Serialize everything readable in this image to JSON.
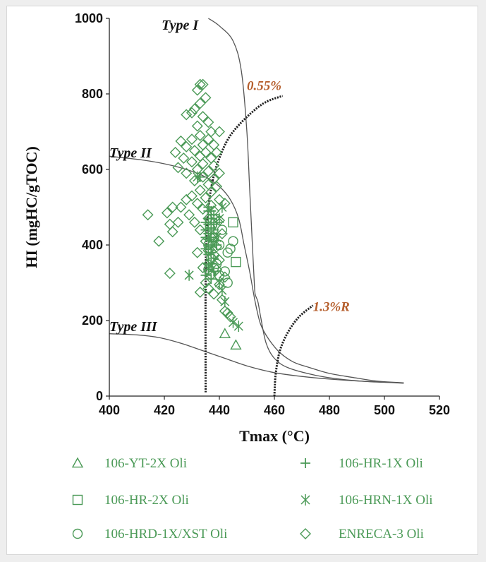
{
  "chart_data": {
    "type": "scatter",
    "title": "",
    "xlabel": "Tmax (°C)",
    "ylabel": "HI (mgHC/gTOC)",
    "xlim": [
      400,
      520
    ],
    "ylim": [
      0,
      1000
    ],
    "xticks": [
      400,
      420,
      440,
      460,
      480,
      500,
      520
    ],
    "yticks": [
      0,
      200,
      400,
      600,
      800,
      1000
    ],
    "colors": {
      "marker": "#4b9a57",
      "curve": "#555555",
      "maturity_line": "#222222",
      "maturity_label": "#b55e2c",
      "type_label": "#111111"
    },
    "kerogen_curves": [
      {
        "name": "Type I",
        "label": "Type I",
        "label_at": [
          419,
          970
        ],
        "points": [
          [
            436,
            1000
          ],
          [
            440,
            980
          ],
          [
            445,
            940
          ],
          [
            448,
            860
          ],
          [
            450,
            700
          ],
          [
            451,
            550
          ],
          [
            452,
            400
          ],
          [
            452.7,
            300
          ],
          [
            453,
            270
          ],
          [
            454,
            250
          ],
          [
            455,
            210
          ],
          [
            457,
            140
          ],
          [
            460,
            100
          ],
          [
            465,
            75
          ],
          [
            475,
            55
          ],
          [
            485,
            44
          ],
          [
            495,
            38
          ],
          [
            502,
            36
          ],
          [
            507,
            34
          ]
        ]
      },
      {
        "name": "Type II",
        "label": "Type II",
        "label_at": [
          400,
          632
        ],
        "points": [
          [
            400,
            635
          ],
          [
            412,
            625
          ],
          [
            420,
            615
          ],
          [
            428,
            600
          ],
          [
            435,
            580
          ],
          [
            440,
            555
          ],
          [
            444,
            520
          ],
          [
            447,
            470
          ],
          [
            449,
            400
          ],
          [
            451,
            330
          ],
          [
            453,
            250
          ],
          [
            455,
            190
          ],
          [
            458,
            150
          ],
          [
            462,
            115
          ],
          [
            467,
            90
          ],
          [
            473,
            75
          ],
          [
            480,
            60
          ],
          [
            488,
            50
          ],
          [
            497,
            40
          ],
          [
            507,
            35
          ]
        ]
      },
      {
        "name": "Type III",
        "label": "Type III",
        "label_at": [
          400,
          172
        ],
        "points": [
          [
            400,
            165
          ],
          [
            410,
            162
          ],
          [
            418,
            155
          ],
          [
            426,
            140
          ],
          [
            434,
            120
          ],
          [
            442,
            100
          ],
          [
            450,
            80
          ],
          [
            460,
            62
          ],
          [
            470,
            52
          ],
          [
            480,
            45
          ],
          [
            490,
            40
          ],
          [
            500,
            37
          ],
          [
            507,
            35
          ]
        ]
      }
    ],
    "maturity_lines": [
      {
        "name": "0.55%",
        "label": "0.55%",
        "label_at": [
          450,
          810
        ],
        "points": [
          [
            435,
            10
          ],
          [
            435,
            300
          ],
          [
            435.5,
            450
          ],
          [
            437,
            550
          ],
          [
            440,
            630
          ],
          [
            445,
            700
          ],
          [
            455,
            770
          ],
          [
            463,
            795
          ]
        ]
      },
      {
        "name": "1.3%R",
        "label": "1.3%R",
        "label_at": [
          474,
          225
        ],
        "points": [
          [
            460,
            0
          ],
          [
            460.5,
            60
          ],
          [
            462,
            120
          ],
          [
            465,
            170
          ],
          [
            469,
            210
          ],
          [
            474,
            240
          ]
        ]
      }
    ],
    "series": [
      {
        "name": "106-YT-2X Oli",
        "marker": "triangle",
        "points": [
          [
            442,
            165
          ],
          [
            446,
            135
          ]
        ]
      },
      {
        "name": "106-HR-1X Oli",
        "marker": "plus",
        "points": [
          [
            433,
            580
          ],
          [
            436,
            490
          ],
          [
            437,
            470
          ],
          [
            436,
            455
          ],
          [
            438,
            440
          ],
          [
            436,
            430
          ],
          [
            437,
            420
          ],
          [
            436,
            400
          ],
          [
            435,
            390
          ],
          [
            436,
            375
          ],
          [
            438,
            365
          ],
          [
            437,
            350
          ],
          [
            436,
            335
          ],
          [
            435,
            320
          ],
          [
            437,
            310
          ],
          [
            438,
            480
          ],
          [
            439,
            460
          ],
          [
            437,
            445
          ],
          [
            436,
            500
          ],
          [
            438,
            410
          ],
          [
            435,
            460
          ],
          [
            437,
            380
          ],
          [
            436,
            350
          ],
          [
            438,
            330
          ],
          [
            435,
            420
          ],
          [
            439,
            400
          ],
          [
            436,
            470
          ],
          [
            437,
            490
          ],
          [
            438,
            455
          ],
          [
            436,
            415
          ],
          [
            435,
            440
          ],
          [
            437,
            395
          ]
        ]
      },
      {
        "name": "106-HR-2X Oli",
        "marker": "square",
        "points": [
          [
            445,
            460
          ],
          [
            446,
            355
          ]
        ]
      },
      {
        "name": "106-HRN-1X Oli",
        "marker": "asterisk",
        "points": [
          [
            432,
            580
          ],
          [
            429,
            320
          ],
          [
            441,
            500
          ],
          [
            439,
            420
          ],
          [
            440,
            300
          ],
          [
            441,
            280
          ],
          [
            442,
            250
          ],
          [
            445,
            195
          ],
          [
            447,
            185
          ],
          [
            440,
            470
          ]
        ]
      },
      {
        "name": "106-HRD-1X/XST Oli",
        "marker": "circle",
        "points": [
          [
            436,
            335
          ],
          [
            437,
            365
          ],
          [
            436,
            400
          ],
          [
            438,
            420
          ],
          [
            440,
            400
          ],
          [
            441,
            440
          ],
          [
            444,
            390
          ],
          [
            445,
            410
          ],
          [
            443,
            380
          ],
          [
            439,
            350
          ],
          [
            438,
            340
          ],
          [
            442,
            330
          ],
          [
            440,
            320
          ],
          [
            443,
            300
          ]
        ]
      },
      {
        "name": "ENRECA-3 Oli",
        "marker": "diamond",
        "points": [
          [
            433,
            825
          ],
          [
            434,
            825
          ],
          [
            432,
            810
          ],
          [
            435,
            790
          ],
          [
            433,
            775
          ],
          [
            431,
            760
          ],
          [
            430,
            750
          ],
          [
            434,
            740
          ],
          [
            428,
            745
          ],
          [
            436,
            725
          ],
          [
            432,
            715
          ],
          [
            437,
            700
          ],
          [
            440,
            700
          ],
          [
            433,
            690
          ],
          [
            436,
            680
          ],
          [
            430,
            680
          ],
          [
            426,
            675
          ],
          [
            434,
            665
          ],
          [
            438,
            665
          ],
          [
            428,
            660
          ],
          [
            431,
            650
          ],
          [
            435,
            645
          ],
          [
            439,
            645
          ],
          [
            424,
            645
          ],
          [
            433,
            635
          ],
          [
            437,
            630
          ],
          [
            427,
            630
          ],
          [
            430,
            620
          ],
          [
            434,
            615
          ],
          [
            438,
            610
          ],
          [
            425,
            605
          ],
          [
            432,
            600
          ],
          [
            436,
            595
          ],
          [
            440,
            590
          ],
          [
            428,
            590
          ],
          [
            434,
            580
          ],
          [
            438,
            575
          ],
          [
            431,
            570
          ],
          [
            436,
            560
          ],
          [
            439,
            555
          ],
          [
            433,
            545
          ],
          [
            437,
            540
          ],
          [
            430,
            530
          ],
          [
            435,
            525
          ],
          [
            440,
            520
          ],
          [
            428,
            520
          ],
          [
            432,
            510
          ],
          [
            437,
            505
          ],
          [
            442,
            510
          ],
          [
            426,
            500
          ],
          [
            434,
            495
          ],
          [
            438,
            490
          ],
          [
            423,
            500
          ],
          [
            421,
            485
          ],
          [
            429,
            480
          ],
          [
            414,
            480
          ],
          [
            436,
            470
          ],
          [
            440,
            465
          ],
          [
            431,
            460
          ],
          [
            425,
            460
          ],
          [
            422,
            455
          ],
          [
            418,
            410
          ],
          [
            423,
            435
          ],
          [
            437,
            445
          ],
          [
            433,
            440
          ],
          [
            441,
            430
          ],
          [
            438,
            420
          ],
          [
            435,
            410
          ],
          [
            439,
            395
          ],
          [
            436,
            385
          ],
          [
            432,
            380
          ],
          [
            438,
            375
          ],
          [
            440,
            360
          ],
          [
            436,
            350
          ],
          [
            434,
            340
          ],
          [
            439,
            335
          ],
          [
            437,
            320
          ],
          [
            442,
            315
          ],
          [
            435,
            300
          ],
          [
            440,
            295
          ],
          [
            436,
            285
          ],
          [
            433,
            275
          ],
          [
            438,
            270
          ],
          [
            441,
            255
          ],
          [
            442,
            225
          ],
          [
            443,
            220
          ],
          [
            422,
            325
          ],
          [
            444,
            210
          ]
        ]
      }
    ],
    "legend": {
      "placement": "bottom",
      "columns": 2,
      "entries": [
        {
          "label": "106-YT-2X Oli",
          "marker": "triangle"
        },
        {
          "label": "106-HR-1X Oli",
          "marker": "plus"
        },
        {
          "label": "106-HR-2X Oli",
          "marker": "square"
        },
        {
          "label": "106-HRN-1X Oli",
          "marker": "asterisk"
        },
        {
          "label": "106-HRD-1X/XST Oli",
          "marker": "circle"
        },
        {
          "label": "ENRECA-3 Oli",
          "marker": "diamond"
        }
      ]
    }
  }
}
